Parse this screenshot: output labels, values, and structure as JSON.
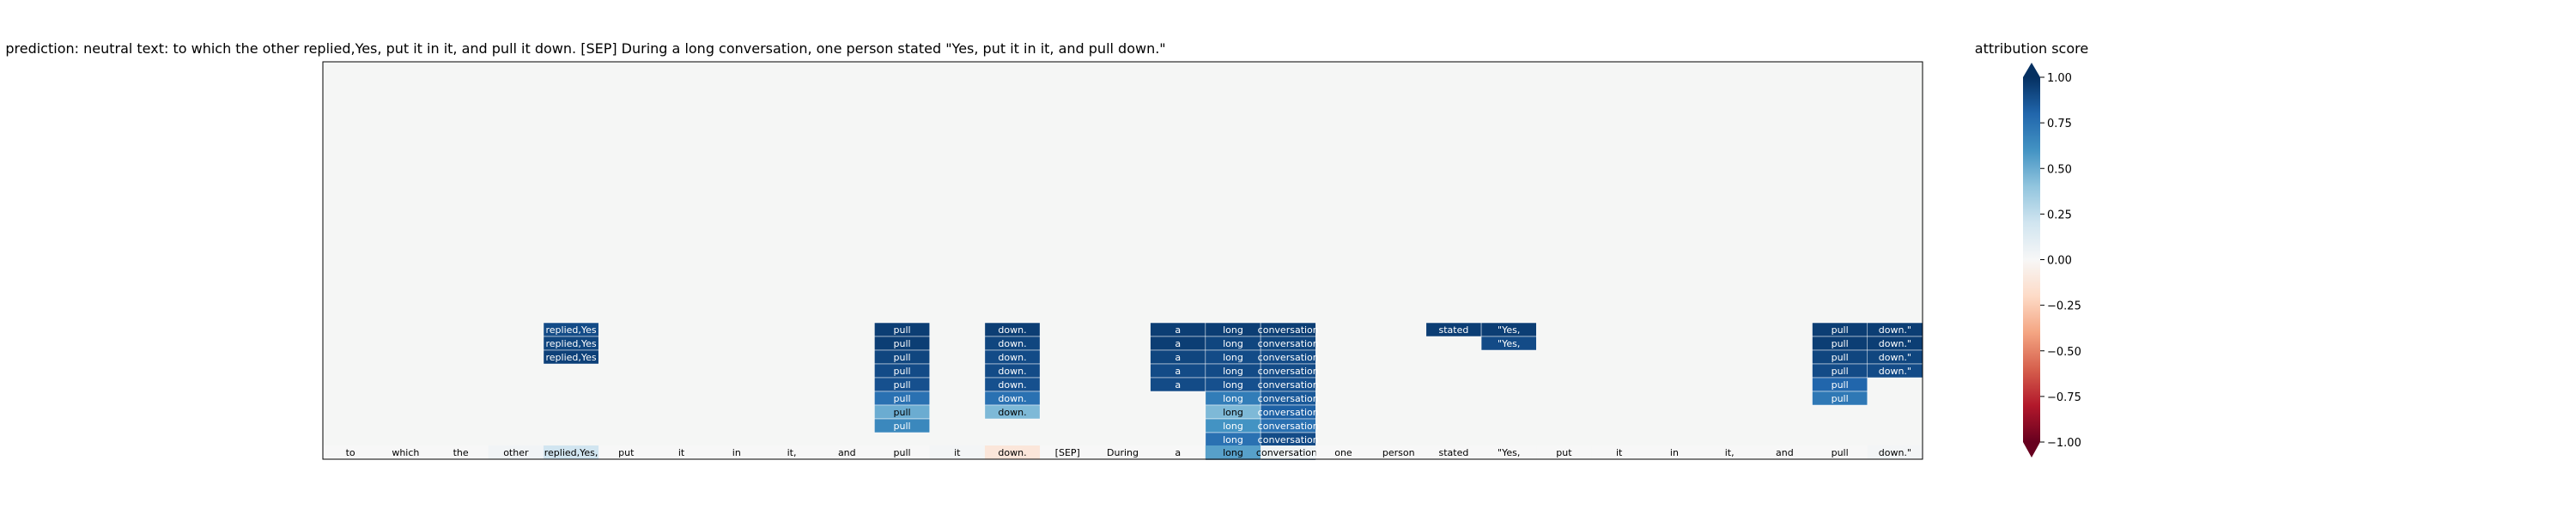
{
  "chart_data": {
    "type": "heatmap",
    "title": "prediction:  neutral     text:  to which the other replied,Yes, put it in it, and pull it down. [SEP] During a long conversation, one person stated \"Yes, put it in it, and pull down.\"",
    "colorbar": {
      "label": "attribution score",
      "ticks": [
        "1.00",
        "0.75",
        "0.50",
        "0.25",
        "0.00",
        "−0.25",
        "−0.50",
        "−0.75",
        "−1.00"
      ],
      "range": [
        -1.0,
        1.0
      ],
      "colormap": "RdBu"
    },
    "tokens": [
      "to",
      "which",
      "the",
      "other",
      "replied,Yes,",
      "put",
      "it",
      "in",
      "it,",
      "and",
      "pull",
      "it",
      "down.",
      "[SEP]",
      "During",
      "a",
      "long",
      "conversation,",
      "one",
      "person",
      "stated",
      "\"Yes,",
      "put",
      "it",
      "in",
      "it,",
      "and",
      "pull",
      "down.\""
    ],
    "token_scores": [
      0.0,
      0.0,
      0.0,
      0.03,
      0.2,
      0.0,
      0.0,
      0.0,
      0.0,
      0.0,
      0.0,
      0.02,
      -0.12,
      0.0,
      0.0,
      0.0,
      0.55,
      0.05,
      0.0,
      0.0,
      0.0,
      0.0,
      0.0,
      0.0,
      0.0,
      0.0,
      0.0,
      0.0,
      0.02
    ],
    "attention_columns": [
      {
        "token_index": 4,
        "label": "replied,Yes",
        "scores": [
          0.9,
          0.92,
          0.94
        ]
      },
      {
        "token_index": 10,
        "label": "pull",
        "scores": [
          0.95,
          0.95,
          0.92,
          0.9,
          0.88,
          0.75,
          0.5,
          0.65
        ]
      },
      {
        "token_index": 12,
        "label": "down.",
        "scores": [
          0.95,
          0.92,
          0.9,
          0.9,
          0.88,
          0.75,
          0.45
        ]
      },
      {
        "token_index": 15,
        "label": "a",
        "scores": [
          0.95,
          0.95,
          0.92,
          0.9,
          0.9
        ]
      },
      {
        "token_index": 16,
        "label": "long",
        "scores": [
          0.95,
          0.92,
          0.9,
          0.9,
          0.88,
          0.7,
          0.45,
          0.6,
          0.75,
          0.95
        ]
      },
      {
        "token_index": 17,
        "label": "conversation",
        "scores": [
          0.95,
          0.92,
          0.9,
          0.9,
          0.88,
          0.85,
          0.82,
          0.75,
          0.9,
          0.95
        ]
      },
      {
        "token_index": 20,
        "label": "stated",
        "scores": [
          0.95
        ]
      },
      {
        "token_index": 21,
        "label": "\"Yes,",
        "scores": [
          0.95,
          0.9
        ]
      },
      {
        "token_index": 27,
        "label": "pull",
        "scores": [
          0.95,
          0.95,
          0.92,
          0.9,
          0.8,
          0.72
        ]
      },
      {
        "token_index": 28,
        "label": "down.\"",
        "scores": [
          0.95,
          0.95,
          0.92,
          0.9
        ]
      }
    ]
  }
}
